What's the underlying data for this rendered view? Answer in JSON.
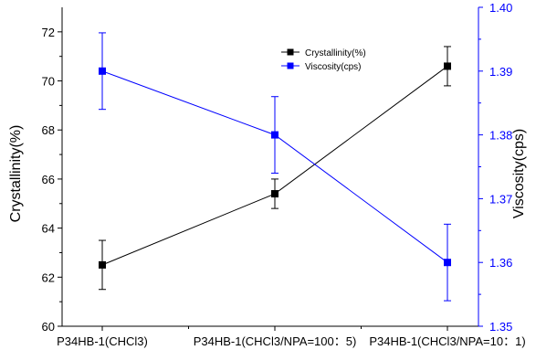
{
  "chart_data": {
    "type": "line",
    "categories": [
      "P34HB-1(CHCl3)",
      "P34HB-1(CHCl3/NPA=100：5)",
      "P34HB-1(CHCl3/NPA=10：1)"
    ],
    "series": [
      {
        "name": "Crystallinity(%)",
        "axis": "left",
        "color": "#000000",
        "marker": "square",
        "values": [
          62.5,
          65.4,
          70.6
        ],
        "error": [
          1.0,
          0.6,
          0.8
        ]
      },
      {
        "name": "Viscosity(cps)",
        "axis": "right",
        "color": "#0000ff",
        "marker": "square",
        "values": [
          1.39,
          1.38,
          1.36
        ],
        "error": [
          0.006,
          0.006,
          0.006
        ]
      }
    ],
    "y_left": {
      "label": "Crystallinity(%)",
      "ylim": [
        60,
        73
      ],
      "ticks": [
        60,
        62,
        64,
        66,
        68,
        70,
        72
      ]
    },
    "y_right": {
      "label": "Viscosity(cps)",
      "ylim": [
        1.35,
        1.4
      ],
      "ticks": [
        1.35,
        1.36,
        1.37,
        1.38,
        1.39,
        1.4
      ],
      "tick_labels": [
        "1.35",
        "1.36",
        "1.37",
        "1.38",
        "1.39",
        "1.40"
      ],
      "color": "#0000ff"
    },
    "grid": false,
    "legend_position": "top-center"
  }
}
